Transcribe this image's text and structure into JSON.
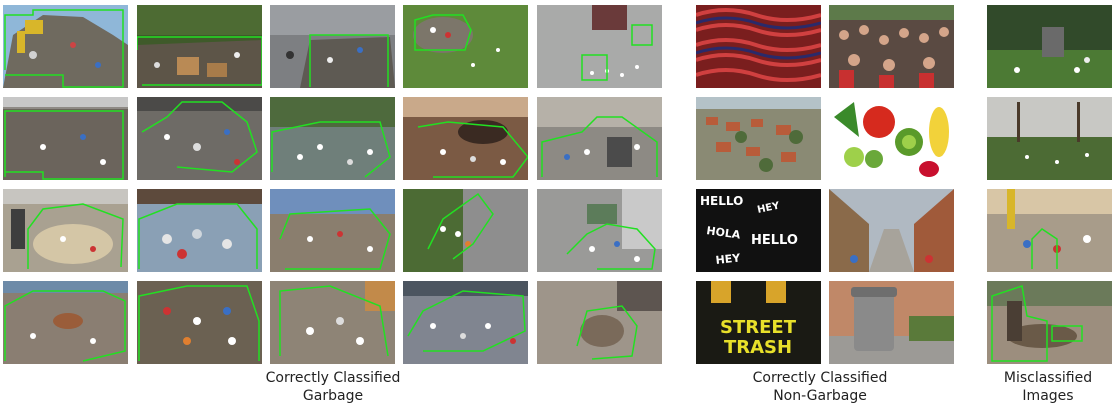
{
  "sections": [
    {
      "title_line1": "Correctly Classified",
      "title_line2": "Garbage"
    },
    {
      "title_line1": "Correctly Classified",
      "title_line2": "Non-Garbage"
    },
    {
      "title_line1": "Misclassified",
      "title_line2": "Images"
    }
  ],
  "embedded_text": {
    "street_trash_poster": [
      "STREET",
      "TRASH"
    ],
    "hello_pattern": [
      "HELLO",
      "HEY",
      "HOLA",
      "HELLO",
      "HEY"
    ]
  },
  "colors": {
    "highlight_outline": "#22e022",
    "background": "#ffffff",
    "caption_text": "#222222"
  }
}
